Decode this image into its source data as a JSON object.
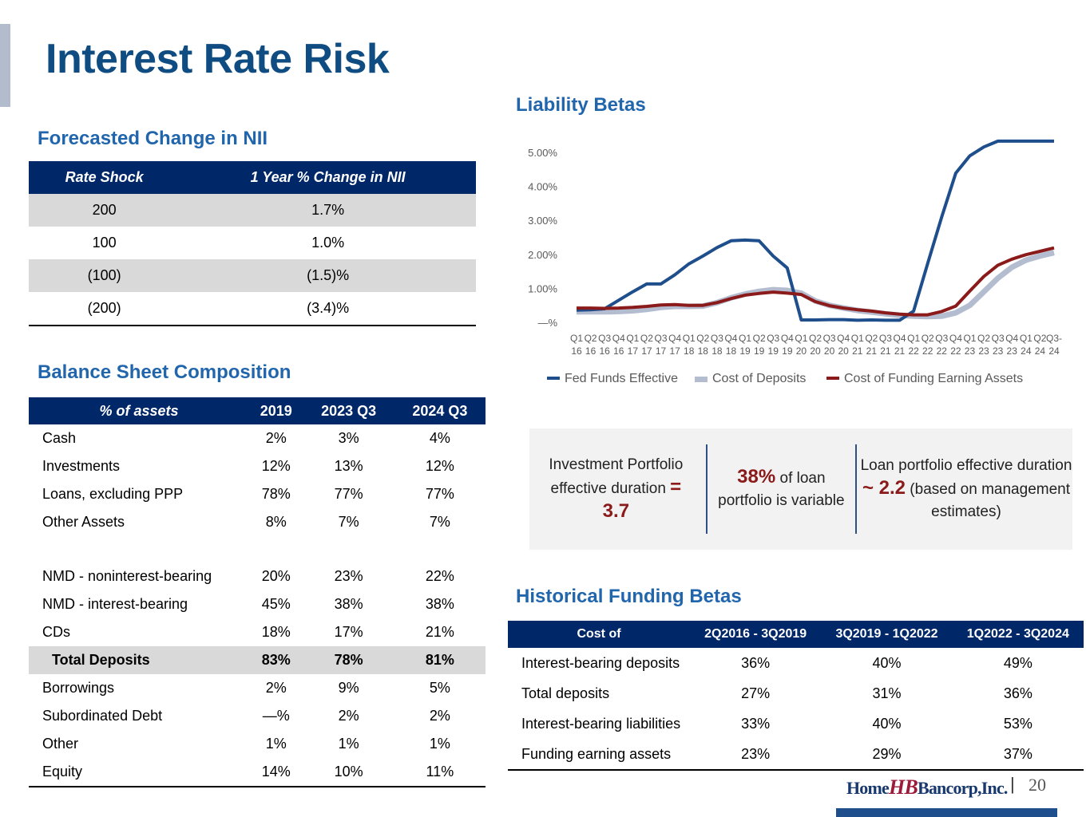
{
  "title": "Interest Rate Risk",
  "nii": {
    "heading": "Forecasted Change in NII",
    "columns": [
      "Rate Shock",
      "1 Year % Change in NII"
    ],
    "rows": [
      [
        "200",
        "1.7%"
      ],
      [
        "100",
        "1.0%"
      ],
      [
        "(100)",
        "(1.5)%"
      ],
      [
        "(200)",
        "(3.4)%"
      ]
    ]
  },
  "balance": {
    "heading": "Balance Sheet Composition",
    "columns": [
      "% of assets",
      "2019",
      "2023 Q3",
      "2024 Q3"
    ],
    "rows": [
      [
        "Cash",
        "2%",
        "3%",
        "4%"
      ],
      [
        "Investments",
        "12%",
        "13%",
        "12%"
      ],
      [
        "Loans, excluding PPP",
        "78%",
        "77%",
        "77%"
      ],
      [
        "Other Assets",
        "8%",
        "7%",
        "7%"
      ],
      [
        "NMD - noninterest-bearing",
        "20%",
        "23%",
        "22%"
      ],
      [
        "NMD - interest-bearing",
        "45%",
        "38%",
        "38%"
      ],
      [
        "CDs",
        "18%",
        "17%",
        "21%"
      ],
      [
        "Total Deposits",
        "83%",
        "78%",
        "81%"
      ],
      [
        "Borrowings",
        "2%",
        "9%",
        "5%"
      ],
      [
        "Subordinated Debt",
        "—%",
        "2%",
        "2%"
      ],
      [
        "Other",
        "1%",
        "1%",
        "1%"
      ],
      [
        "Equity",
        "14%",
        "10%",
        "11%"
      ]
    ]
  },
  "liability": {
    "heading": "Liability Betas"
  },
  "callouts": {
    "c1_text": "Investment Portfolio effective duration ",
    "c1_eq": "=",
    "c1_value": "3.7",
    "c2_value": "38%",
    "c2_text": " of loan portfolio is variable",
    "c3_text_a": "Loan portfolio effective duration ",
    "c3_value": "~ 2.2",
    "c3_text_b": " (based on management estimates)"
  },
  "funding": {
    "heading": "Historical Funding Betas",
    "columns": [
      "Cost of",
      "2Q2016 - 3Q2019",
      "3Q2019 - 1Q2022",
      "1Q2022 - 3Q2024"
    ],
    "rows": [
      [
        "Interest-bearing deposits",
        "36%",
        "40%",
        "49%"
      ],
      [
        "Total deposits",
        "27%",
        "31%",
        "36%"
      ],
      [
        "Interest-bearing liabilities",
        "33%",
        "40%",
        "53%"
      ],
      [
        "Funding earning assets",
        "23%",
        "29%",
        "37%"
      ]
    ]
  },
  "footer": {
    "logo_home": "Home",
    "logo_hb": "HB",
    "logo_bancorp": "Bancorp,Inc.",
    "separator": "|",
    "page": "20"
  },
  "colors": {
    "fed": "#1f4e8c",
    "deposits": "#b4bdd0",
    "funding": "#8b1a1a",
    "header_navy": "#002768",
    "title_blue": "#0f4c81"
  },
  "chart_data": {
    "type": "line",
    "title": "Liability Betas",
    "xlabel": "",
    "ylabel": "",
    "ylim": [
      0,
      5
    ],
    "yticks": [
      "—%",
      "1.00%",
      "2.00%",
      "3.00%",
      "4.00%",
      "5.00%"
    ],
    "grid": false,
    "legend": "bottom",
    "categories": [
      "Q1-16",
      "Q2-16",
      "Q3-16",
      "Q4-16",
      "Q1-17",
      "Q2-17",
      "Q3-17",
      "Q4-17",
      "Q1-18",
      "Q2-18",
      "Q3-18",
      "Q4-18",
      "Q1-19",
      "Q2-19",
      "Q3-19",
      "Q4-19",
      "Q1-20",
      "Q2-20",
      "Q3-20",
      "Q4-20",
      "Q1-21",
      "Q2-21",
      "Q3-21",
      "Q4-21",
      "Q1-22",
      "Q2-22",
      "Q3-22",
      "Q4-22",
      "Q1-23",
      "Q2-23",
      "Q3-23",
      "Q4-23",
      "Q1-24",
      "Q2-24",
      "Q3-24"
    ],
    "tick_top": [
      "Q1",
      "Q2",
      "Q3",
      "Q4",
      "Q1",
      "Q2",
      "Q3",
      "Q4",
      "Q1",
      "Q2",
      "Q3",
      "Q4",
      "Q1",
      "Q2",
      "Q3",
      "Q4",
      "Q1",
      "Q2",
      "Q3",
      "Q4",
      "Q1",
      "Q2",
      "Q3",
      "Q4",
      "Q1",
      "Q2",
      "Q3",
      "Q4",
      "Q1",
      "Q2",
      "Q3",
      "Q4",
      "Q1",
      "Q2",
      "Q3-"
    ],
    "tick_bottom": [
      "16",
      "16",
      "16",
      "16",
      "17",
      "17",
      "17",
      "17",
      "18",
      "18",
      "18",
      "18",
      "19",
      "19",
      "19",
      "19",
      "20",
      "20",
      "20",
      "20",
      "21",
      "21",
      "21",
      "21",
      "22",
      "22",
      "22",
      "22",
      "23",
      "23",
      "23",
      "23",
      "24",
      "24",
      "24"
    ],
    "series": [
      {
        "name": "Fed Funds Effective",
        "values": [
          0.36,
          0.37,
          0.4,
          0.65,
          0.9,
          1.13,
          1.13,
          1.4,
          1.72,
          1.95,
          2.2,
          2.4,
          2.42,
          2.4,
          1.95,
          1.6,
          0.07,
          0.07,
          0.08,
          0.08,
          0.06,
          0.07,
          0.06,
          0.06,
          0.33,
          1.73,
          3.1,
          4.39,
          4.9,
          5.16,
          5.33,
          5.33,
          5.33,
          5.33,
          5.33
        ]
      },
      {
        "name": "Cost of  Deposits",
        "values": [
          0.31,
          0.31,
          0.31,
          0.32,
          0.34,
          0.38,
          0.44,
          0.47,
          0.47,
          0.48,
          0.58,
          0.72,
          0.83,
          0.91,
          0.96,
          0.94,
          0.86,
          0.63,
          0.5,
          0.42,
          0.35,
          0.3,
          0.25,
          0.21,
          0.18,
          0.17,
          0.18,
          0.28,
          0.5,
          0.9,
          1.3,
          1.62,
          1.83,
          1.95,
          2.05
        ]
      },
      {
        "name": "Cost of Funding Earning Assets",
        "values": [
          0.42,
          0.42,
          0.41,
          0.42,
          0.44,
          0.47,
          0.51,
          0.52,
          0.5,
          0.5,
          0.58,
          0.7,
          0.8,
          0.85,
          0.89,
          0.86,
          0.82,
          0.61,
          0.49,
          0.42,
          0.37,
          0.33,
          0.28,
          0.24,
          0.22,
          0.22,
          0.32,
          0.48,
          0.92,
          1.35,
          1.68,
          1.86,
          1.99,
          2.09,
          2.19
        ]
      }
    ]
  }
}
